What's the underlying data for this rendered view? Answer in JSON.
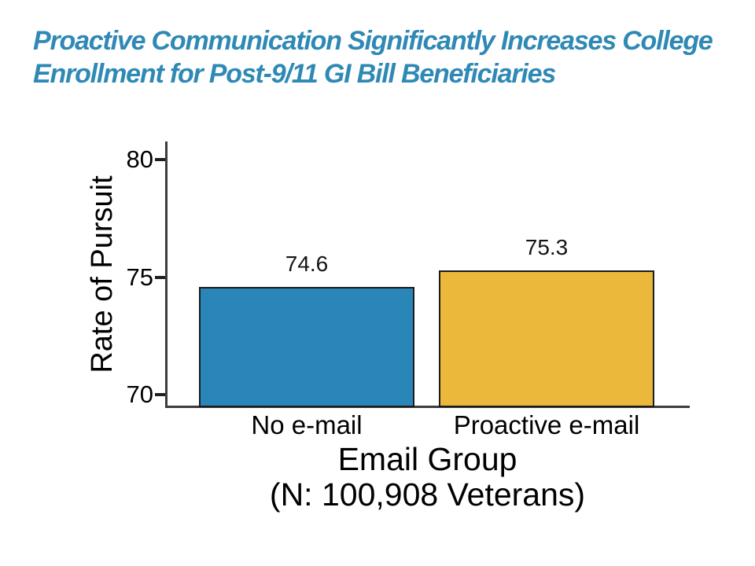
{
  "headline": {
    "line1": "Proactive Communication Significantly Increases College",
    "line2": "Enrollment for Post-9/11 GI Bill Beneficiaries",
    "color": "#2F89B5"
  },
  "chart_data": {
    "type": "bar",
    "title": "Proactive Communication Significantly Increases College Enrollment for Post-9/11 GI Bill Beneficiaries",
    "categories": [
      "No e-mail",
      "Proactive e-mail"
    ],
    "values": [
      74.6,
      75.3
    ],
    "value_labels": [
      "74.6",
      "75.3"
    ],
    "bar_colors": [
      "#2A86B9",
      "#ECB83C"
    ],
    "bar_border_color": "#1C1C1C",
    "ylabel": "Rate of Pursuit",
    "xlabel_lines": [
      "Email Group",
      "(N: 100,908 Veterans)"
    ],
    "yticks": [
      70,
      75,
      80
    ],
    "ylim": [
      69.47,
      80.78
    ],
    "grid": false,
    "legend": "none",
    "axis_color": "#3C3C3C",
    "text_color": "#000000"
  }
}
